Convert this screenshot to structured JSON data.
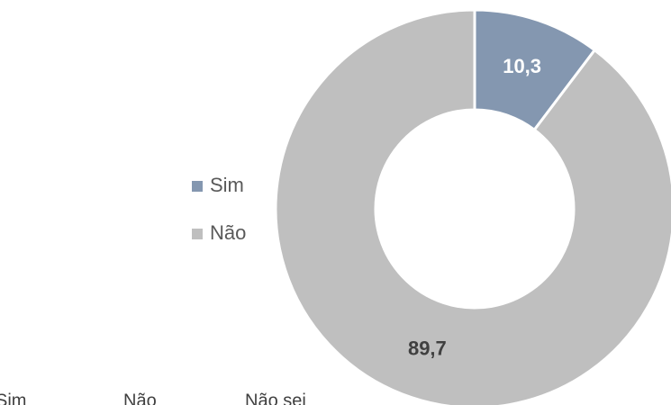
{
  "chart_data": {
    "type": "donut",
    "categories": [
      "Sim",
      "Não"
    ],
    "values": [
      10.3,
      89.7
    ],
    "value_labels": [
      "10,3",
      "89,7"
    ],
    "colors": [
      "#8497b0",
      "#bfbfbf"
    ],
    "label_colors": [
      "#ffffff",
      "#404040"
    ],
    "legend": "left",
    "footer_labels": [
      "Sim",
      "Não",
      "Não sei"
    ]
  }
}
